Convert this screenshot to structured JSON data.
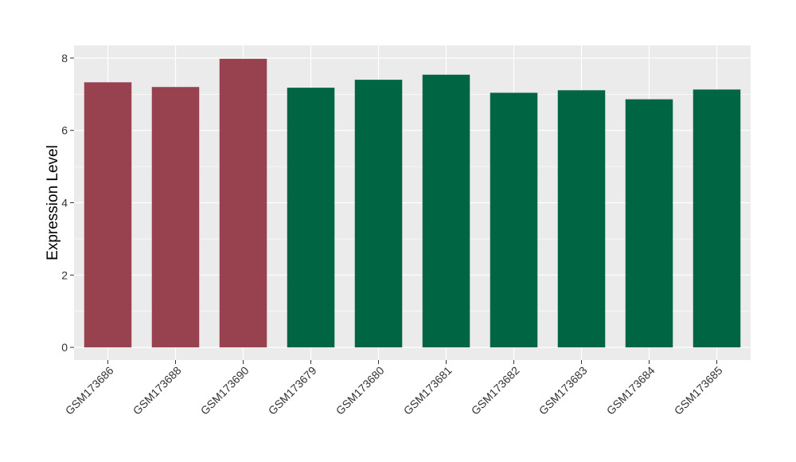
{
  "chart_data": {
    "type": "bar",
    "title": "",
    "xlabel": "",
    "ylabel": "Expression Level",
    "ylim": [
      -0.35,
      8.35
    ],
    "yticks": [
      0,
      2,
      4,
      6,
      8
    ],
    "grid": true,
    "legend": "none",
    "categories": [
      "GSM173686",
      "GSM173688",
      "GSM173690",
      "GSM173679",
      "GSM173680",
      "GSM173681",
      "GSM173682",
      "GSM173683",
      "GSM173684",
      "GSM173685"
    ],
    "values": [
      7.33,
      7.2,
      7.98,
      7.18,
      7.4,
      7.54,
      7.04,
      7.11,
      6.86,
      7.13
    ],
    "groups": [
      1,
      1,
      1,
      2,
      2,
      2,
      2,
      2,
      2,
      2
    ],
    "colors": {
      "group1": "#99424F",
      "group2": "#006543",
      "panel": "#EBEBEB",
      "grid": "#FFFFFF"
    }
  }
}
